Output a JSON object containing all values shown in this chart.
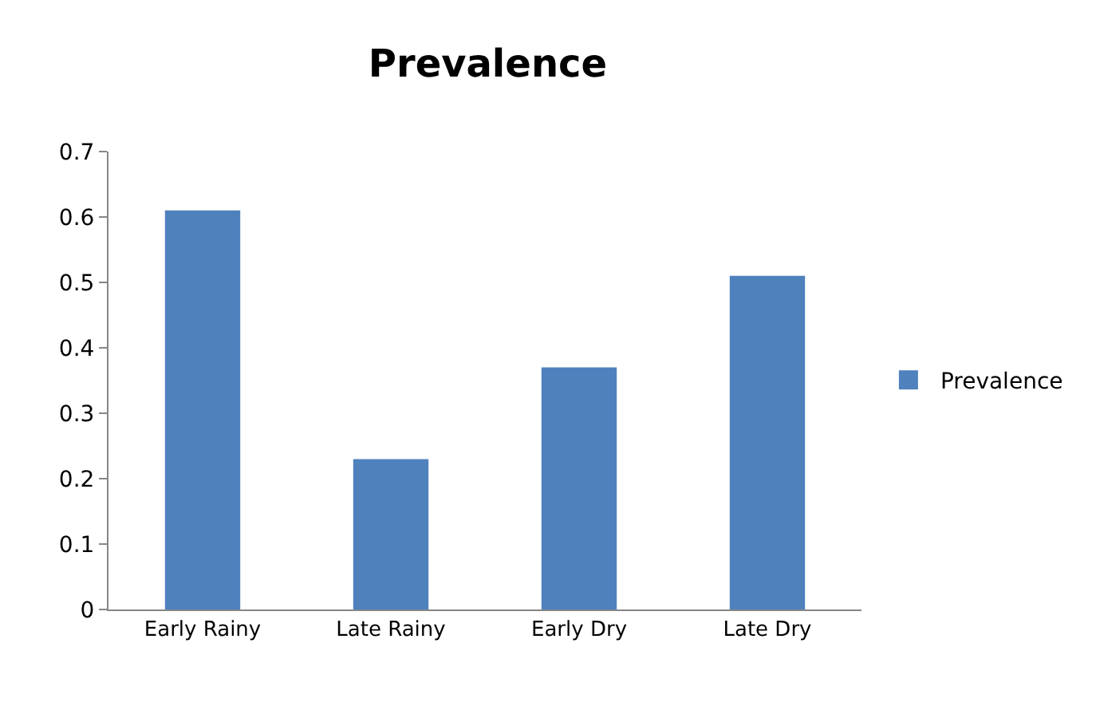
{
  "chart_data": {
    "type": "bar",
    "title": "Prevalence",
    "categories": [
      "Early Rainy",
      "Late Rainy",
      "Early Dry",
      "Late Dry"
    ],
    "series": [
      {
        "name": "Prevalence",
        "color": "#4f81bd",
        "values": [
          0.61,
          0.23,
          0.37,
          0.51
        ]
      }
    ],
    "ylim": [
      0,
      0.7
    ],
    "yticks": [
      0,
      0.1,
      0.2,
      0.3,
      0.4,
      0.5,
      0.6,
      0.7
    ],
    "grid": false,
    "legend": "right"
  }
}
